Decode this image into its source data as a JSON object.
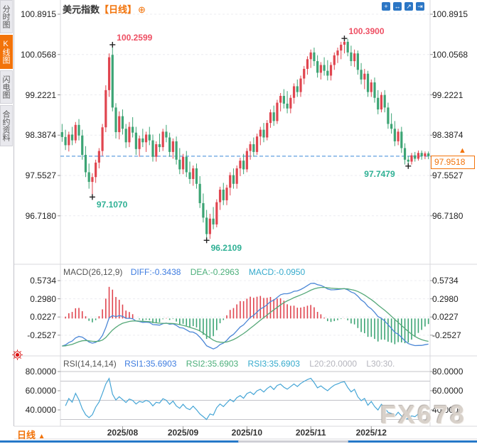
{
  "colors": {
    "accent_orange": "#f2730a",
    "up_red": "#e0454f",
    "down_green": "#3ca474",
    "label_red": "#ee4f63",
    "label_teal": "#2eb094",
    "diff_blue": "#4a86d6",
    "dea_green": "#55a878",
    "macd_cyan": "#35aacc",
    "rsi_blue": "#45a5d6",
    "price_line_blue": "#3a87d8",
    "grid_gray": "#ececf0",
    "rsi_grid_gray": "#c4c4ca",
    "divider_gray": "#d9d9de",
    "icon_blue": "#2b76c5",
    "axis_text": "#222222",
    "watermark_gray": "#d8d1ca"
  },
  "sidebar": {
    "tabs": [
      {
        "label": "分时图",
        "active": false
      },
      {
        "label": "K线图",
        "active": true
      },
      {
        "label": "闪电图",
        "active": false
      },
      {
        "label": "合约资料",
        "active": false
      }
    ]
  },
  "header": {
    "title": "美元指数",
    "period_tag": "【日线】",
    "plus_icon": "⊕"
  },
  "toolbar": {
    "buttons": [
      {
        "name": "move-chart",
        "glyph": "+"
      },
      {
        "name": "fit-horizontal",
        "glyph": "↔"
      },
      {
        "name": "fit-scale",
        "glyph": "↗"
      },
      {
        "name": "goto-latest",
        "glyph": "⇥"
      }
    ]
  },
  "main_chart": {
    "y_axis_labels": [
      "100.8915",
      "100.0568",
      "99.2221",
      "98.3874",
      "97.5527",
      "96.7180"
    ],
    "y_axis_values": [
      100.8915,
      100.0568,
      99.2221,
      98.3874,
      97.5527,
      96.718
    ],
    "current_price": {
      "label": "97.9518",
      "value": 97.9518,
      "arrow": "▲"
    }
  },
  "macd": {
    "title": "MACD(26,12,9)",
    "diff_label": "DIFF:-0.3438",
    "dea_label": "DEA:-0.2963",
    "macd_label": "MACD:-0.0950",
    "y_axis_labels": [
      "0.5734",
      "0.2980",
      "0.0227",
      "-0.2527"
    ],
    "y_axis_values": [
      0.5734,
      0.298,
      0.0227,
      -0.2527
    ]
  },
  "rsi": {
    "title": "RSI(14,14,14)",
    "rsi1_label": "RSI1:35.6903",
    "rsi2_label": "RSI2:35.6903",
    "rsi3_label": "RSI3:35.6903",
    "l20_label": "L20:20.0000",
    "l30_label": "L30:30.",
    "y_axis_labels": [
      "80.0000",
      "60.0000",
      "40.0000"
    ],
    "y_axis_values": [
      80,
      60,
      40
    ],
    "gridline_values": [
      80,
      70,
      50,
      30
    ]
  },
  "footer": {
    "period_label": "日线",
    "arrow": "▲"
  },
  "watermark": "FX678",
  "chart_data": {
    "type": "candlestick",
    "symbol": "美元指数",
    "period": "日线",
    "price_range_top": 100.8915,
    "price_range_bottom": 96.718,
    "x_tick_labels": [
      "2025/08",
      "2025/09",
      "2025/10",
      "2025/11",
      "2025/12"
    ],
    "x_tick_indices": [
      18,
      36,
      55,
      74,
      92
    ],
    "key_points": [
      {
        "candle_index": 15,
        "price": 100.2599,
        "label": "100.2599",
        "kind": "high",
        "align": "right"
      },
      {
        "candle_index": 84,
        "price": 100.39,
        "label": "100.3900",
        "kind": "high",
        "align": "right"
      },
      {
        "candle_index": 9,
        "price": 97.107,
        "label": "97.1070",
        "kind": "low",
        "align": "right"
      },
      {
        "candle_index": 43,
        "price": 96.2109,
        "label": "96.2109",
        "kind": "low",
        "align": "right"
      },
      {
        "candle_index": 103,
        "price": 97.7479,
        "label": "97.7479",
        "kind": "low",
        "align": "left"
      }
    ],
    "ohlc": [
      [
        98.45,
        98.62,
        98.25,
        98.35
      ],
      [
        98.35,
        98.5,
        98.08,
        98.18
      ],
      [
        98.18,
        98.46,
        98.05,
        98.4
      ],
      [
        98.4,
        98.56,
        98.18,
        98.28
      ],
      [
        98.28,
        98.66,
        98.22,
        98.6
      ],
      [
        98.6,
        98.72,
        98.28,
        98.38
      ],
      [
        98.38,
        98.5,
        97.88,
        97.98
      ],
      [
        97.98,
        98.16,
        97.52,
        97.62
      ],
      [
        97.62,
        97.8,
        97.28,
        97.42
      ],
      [
        97.42,
        97.6,
        97.107,
        97.52
      ],
      [
        97.52,
        97.88,
        97.4,
        97.82
      ],
      [
        97.82,
        98.12,
        97.7,
        98.06
      ],
      [
        98.06,
        98.62,
        97.96,
        98.55
      ],
      [
        98.55,
        99.42,
        98.45,
        99.32
      ],
      [
        99.32,
        100.08,
        99.18,
        100.0
      ],
      [
        100.05,
        100.2599,
        98.88,
        98.96
      ],
      [
        98.96,
        99.05,
        98.32,
        98.45
      ],
      [
        98.45,
        98.88,
        98.3,
        98.78
      ],
      [
        98.78,
        98.92,
        98.4,
        98.52
      ],
      [
        98.52,
        98.62,
        98.12,
        98.24
      ],
      [
        98.24,
        98.66,
        98.14,
        98.56
      ],
      [
        98.56,
        98.76,
        98.34,
        98.44
      ],
      [
        98.44,
        98.56,
        97.98,
        98.1
      ],
      [
        98.1,
        98.38,
        97.94,
        98.32
      ],
      [
        98.32,
        98.52,
        98.14,
        98.24
      ],
      [
        98.24,
        98.46,
        98.04,
        98.4
      ],
      [
        98.4,
        98.56,
        98.18,
        98.28
      ],
      [
        98.28,
        98.4,
        97.84,
        97.94
      ],
      [
        97.94,
        98.26,
        97.84,
        98.2
      ],
      [
        98.2,
        98.42,
        98.04,
        98.14
      ],
      [
        98.14,
        98.52,
        98.06,
        98.46
      ],
      [
        98.46,
        98.6,
        98.24,
        98.34
      ],
      [
        98.34,
        98.44,
        97.94,
        98.04
      ],
      [
        98.04,
        98.32,
        97.9,
        98.26
      ],
      [
        98.26,
        98.36,
        97.78,
        97.88
      ],
      [
        97.88,
        98.12,
        97.58,
        97.68
      ],
      [
        97.68,
        98.0,
        97.58,
        97.94
      ],
      [
        97.94,
        98.06,
        97.52,
        97.62
      ],
      [
        97.62,
        97.84,
        97.38,
        97.48
      ],
      [
        97.48,
        97.76,
        97.34,
        97.7
      ],
      [
        97.7,
        97.8,
        97.28,
        97.38
      ],
      [
        97.38,
        97.54,
        96.88,
        96.98
      ],
      [
        96.98,
        97.18,
        96.58,
        96.68
      ],
      [
        96.68,
        96.84,
        96.2109,
        96.34
      ],
      [
        96.34,
        96.76,
        96.24,
        96.66
      ],
      [
        96.66,
        96.9,
        96.44,
        96.54
      ],
      [
        96.54,
        97.06,
        96.48,
        97.0
      ],
      [
        97.0,
        97.32,
        96.84,
        97.26
      ],
      [
        97.26,
        97.4,
        96.94,
        97.04
      ],
      [
        97.04,
        97.36,
        96.94,
        97.3
      ],
      [
        97.3,
        97.62,
        97.14,
        97.56
      ],
      [
        97.56,
        97.7,
        97.28,
        97.38
      ],
      [
        97.38,
        97.76,
        97.28,
        97.7
      ],
      [
        97.7,
        97.92,
        97.54,
        97.86
      ],
      [
        97.86,
        98.0,
        97.58,
        97.68
      ],
      [
        97.68,
        98.12,
        97.62,
        98.06
      ],
      [
        98.06,
        98.26,
        97.88,
        98.2
      ],
      [
        98.2,
        98.34,
        97.94,
        98.04
      ],
      [
        98.04,
        98.42,
        97.98,
        98.36
      ],
      [
        98.36,
        98.56,
        98.18,
        98.5
      ],
      [
        98.5,
        98.64,
        98.24,
        98.34
      ],
      [
        98.34,
        98.7,
        98.28,
        98.64
      ],
      [
        98.64,
        98.92,
        98.54,
        98.86
      ],
      [
        98.86,
        99.0,
        98.58,
        98.68
      ],
      [
        98.68,
        99.12,
        98.62,
        99.06
      ],
      [
        99.06,
        99.26,
        98.88,
        99.2
      ],
      [
        99.2,
        99.34,
        98.94,
        99.04
      ],
      [
        99.04,
        99.3,
        98.84,
        98.94
      ],
      [
        98.94,
        99.22,
        98.84,
        99.16
      ],
      [
        99.16,
        99.46,
        99.04,
        99.4
      ],
      [
        99.4,
        99.54,
        99.18,
        99.28
      ],
      [
        99.28,
        99.62,
        99.18,
        99.56
      ],
      [
        99.56,
        99.82,
        99.44,
        99.76
      ],
      [
        99.76,
        100.02,
        99.64,
        99.96
      ],
      [
        99.96,
        100.16,
        99.78,
        100.1
      ],
      [
        100.1,
        100.2,
        99.82,
        99.92
      ],
      [
        99.92,
        100.04,
        99.58,
        99.68
      ],
      [
        99.68,
        99.9,
        99.54,
        99.84
      ],
      [
        99.84,
        100.0,
        99.62,
        99.72
      ],
      [
        99.72,
        99.94,
        99.52,
        99.62
      ],
      [
        99.62,
        99.9,
        99.52,
        99.84
      ],
      [
        99.84,
        100.1,
        99.74,
        100.04
      ],
      [
        100.04,
        100.2,
        99.88,
        100.14
      ],
      [
        100.14,
        100.32,
        99.96,
        100.26
      ],
      [
        100.26,
        100.39,
        100.08,
        100.32
      ],
      [
        100.32,
        100.38,
        100.02,
        100.1
      ],
      [
        100.1,
        100.24,
        99.82,
        99.92
      ],
      [
        99.92,
        100.16,
        99.8,
        100.08
      ],
      [
        100.08,
        100.14,
        99.64,
        99.74
      ],
      [
        99.74,
        99.88,
        99.44,
        99.54
      ],
      [
        99.54,
        99.76,
        99.34,
        99.66
      ],
      [
        99.66,
        99.72,
        99.18,
        99.28
      ],
      [
        99.28,
        99.54,
        99.18,
        99.48
      ],
      [
        99.48,
        99.58,
        99.06,
        99.16
      ],
      [
        99.16,
        99.32,
        98.82,
        98.92
      ],
      [
        98.92,
        99.28,
        98.86,
        99.22
      ],
      [
        99.22,
        99.32,
        98.86,
        98.96
      ],
      [
        98.96,
        99.06,
        98.52,
        98.62
      ],
      [
        98.62,
        98.84,
        98.42,
        98.52
      ],
      [
        98.52,
        98.68,
        98.16,
        98.26
      ],
      [
        98.26,
        98.52,
        98.18,
        98.46
      ],
      [
        98.46,
        98.56,
        98.02,
        98.12
      ],
      [
        98.12,
        98.22,
        97.78,
        97.88
      ],
      [
        97.88,
        97.96,
        97.7479,
        97.84
      ],
      [
        97.84,
        98.02,
        97.78,
        97.97
      ],
      [
        97.97,
        98.04,
        97.84,
        97.9
      ],
      [
        97.9,
        98.07,
        97.86,
        98.02
      ],
      [
        98.02,
        98.07,
        97.88,
        97.95
      ],
      [
        97.95,
        98.05,
        97.89,
        98.01
      ],
      [
        98.01,
        98.05,
        97.89,
        97.9518
      ]
    ]
  }
}
